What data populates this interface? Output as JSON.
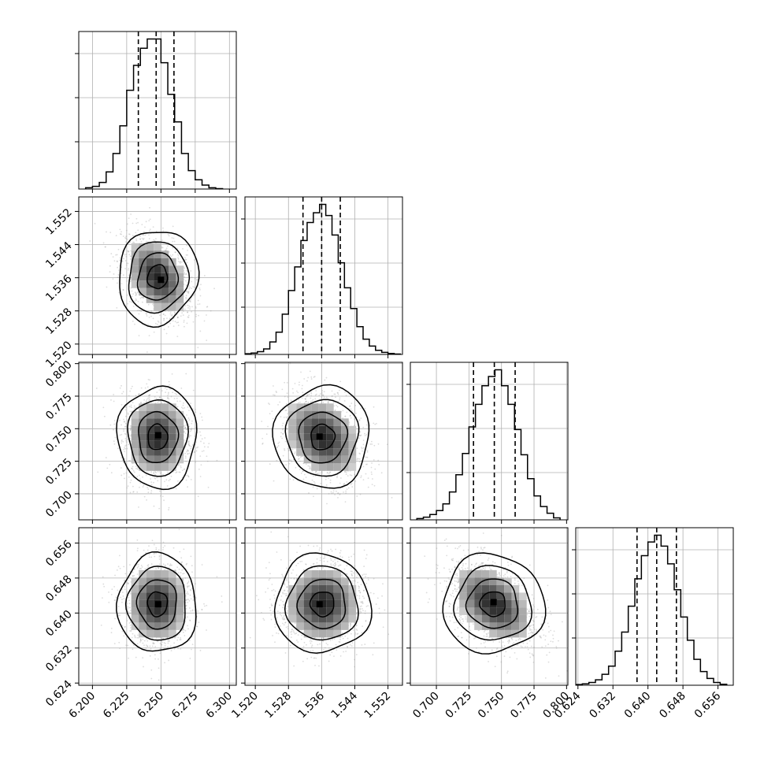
{
  "chart_data": {
    "type": "corner",
    "parameters": [
      {
        "index": 0,
        "range": [
          6.19,
          6.305
        ],
        "ticks": [
          "6.200",
          "6.225",
          "6.250",
          "6.275",
          "6.300"
        ],
        "quantiles": [
          6.2335,
          6.2465,
          6.2595
        ],
        "hist_bins": [
          6.195,
          6.2,
          6.205,
          6.21,
          6.215,
          6.22,
          6.225,
          6.23,
          6.235,
          6.24,
          6.245,
          6.25,
          6.255,
          6.26,
          6.265,
          6.27,
          6.275,
          6.28,
          6.285,
          6.29
        ],
        "hist_counts": [
          1,
          2,
          5,
          13,
          27,
          48,
          75,
          94,
          107,
          114,
          114,
          96,
          72,
          51,
          27,
          14,
          7,
          3,
          1,
          0.3
        ]
      },
      {
        "index": 1,
        "range": [
          1.5175,
          1.5555
        ],
        "ticks": [
          "1.520",
          "1.528",
          "1.536",
          "1.544",
          "1.552"
        ],
        "quantiles": [
          1.5315,
          1.536,
          1.5405
        ],
        "hist_bins": [
          1.5175,
          1.519,
          1.5205,
          1.522,
          1.5235,
          1.525,
          1.5265,
          1.528,
          1.5295,
          1.531,
          1.5325,
          1.534,
          1.5355,
          1.537,
          1.5385,
          1.54,
          1.5415,
          1.543,
          1.5445,
          1.546,
          1.5475,
          1.549,
          1.5505,
          1.552,
          1.5535
        ],
        "hist_counts": [
          0.5,
          1,
          2,
          4,
          9,
          16,
          29,
          46,
          63,
          82,
          95,
          102,
          108,
          100,
          86,
          66,
          48,
          33,
          20,
          11,
          6,
          3,
          1.5,
          0.7,
          0.3
        ]
      },
      {
        "index": 2,
        "range": [
          0.68,
          0.801
        ],
        "ticks": [
          "0.700",
          "0.725",
          "0.750",
          "0.775",
          "0.800"
        ],
        "quantiles": [
          0.7285,
          0.7445,
          0.7605
        ],
        "hist_bins": [
          0.685,
          0.69,
          0.695,
          0.7,
          0.705,
          0.71,
          0.715,
          0.72,
          0.725,
          0.73,
          0.735,
          0.74,
          0.745,
          0.75,
          0.755,
          0.76,
          0.765,
          0.77,
          0.775,
          0.78,
          0.785,
          0.79
        ],
        "hist_counts": [
          1,
          2,
          4,
          7,
          12,
          21,
          34,
          50,
          70,
          87,
          101,
          108,
          113,
          101,
          87,
          68,
          49,
          31,
          18,
          10,
          5,
          1.5
        ]
      },
      {
        "index": 3,
        "range": [
          0.6235,
          0.6595
        ],
        "ticks": [
          "0.624",
          "0.632",
          "0.640",
          "0.648",
          "0.656"
        ],
        "quantiles": [
          0.6375,
          0.642,
          0.6465
        ],
        "hist_bins": [
          0.6235,
          0.625,
          0.6265,
          0.628,
          0.6295,
          0.631,
          0.6325,
          0.634,
          0.6355,
          0.637,
          0.6385,
          0.64,
          0.6415,
          0.643,
          0.6445,
          0.646,
          0.6475,
          0.649,
          0.6505,
          0.652,
          0.6535,
          0.655,
          0.6565
        ],
        "hist_counts": [
          0.5,
          1,
          2,
          4,
          8,
          14,
          25,
          39,
          58,
          78,
          95,
          105,
          110,
          102,
          89,
          70,
          50,
          33,
          19,
          10,
          5,
          2,
          0.7
        ]
      }
    ],
    "pairs": [
      {
        "x": 0,
        "y": 1,
        "mean": [
          6.2475,
          1.5362
        ],
        "sd": [
          0.0125,
          0.005
        ],
        "corr": -0.4,
        "peak": [
          6.25,
          1.5355
        ]
      },
      {
        "x": 0,
        "y": 2,
        "mean": [
          6.2475,
          0.7435
        ],
        "sd": [
          0.0125,
          0.017
        ],
        "corr": 0.0,
        "peak": [
          6.248,
          0.745
        ]
      },
      {
        "x": 1,
        "y": 2,
        "mean": [
          1.5362,
          0.7435
        ],
        "sd": [
          0.005,
          0.017
        ],
        "corr": -0.3,
        "peak": [
          1.5355,
          0.744
        ]
      },
      {
        "x": 0,
        "y": 3,
        "mean": [
          6.2475,
          0.6421
        ],
        "sd": [
          0.0125,
          0.0049
        ],
        "corr": 0.0,
        "peak": [
          6.248,
          0.642
        ]
      },
      {
        "x": 1,
        "y": 3,
        "mean": [
          1.5362,
          0.6421
        ],
        "sd": [
          0.005,
          0.0049
        ],
        "corr": 0.0,
        "peak": [
          1.5355,
          0.642
        ]
      },
      {
        "x": 2,
        "y": 3,
        "mean": [
          0.7435,
          0.6421
        ],
        "sd": [
          0.017,
          0.0049
        ],
        "corr": -0.45,
        "peak": [
          0.744,
          0.6425
        ]
      }
    ],
    "contour_levels_sigma": [
      0.5,
      1.0,
      1.5,
      2.0
    ],
    "grid": true,
    "title": "",
    "colors": {
      "hist": "#000000",
      "points": "#9a9a9a",
      "grid": "#b0b0b0",
      "quantile": "#000000"
    }
  }
}
